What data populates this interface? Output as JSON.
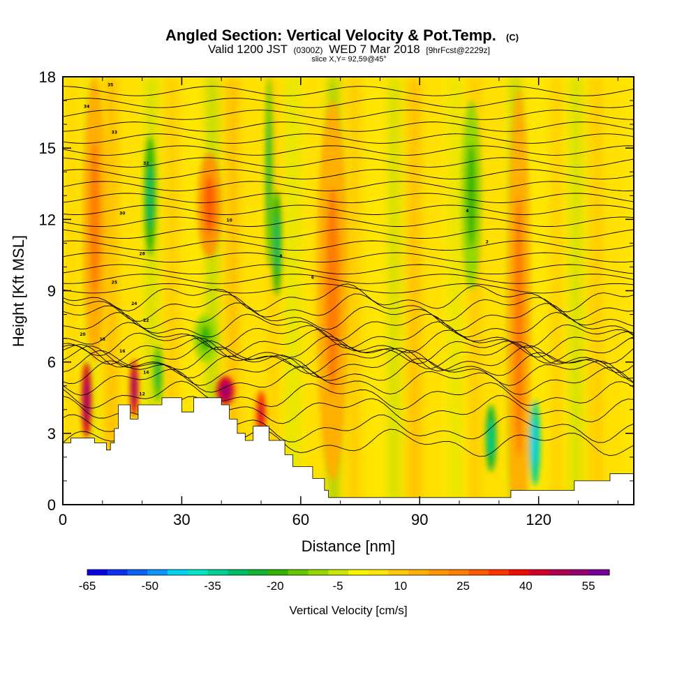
{
  "title": {
    "main": "Angled Section: Vertical Velocity & Pot.Temp.",
    "main_suffix": "(C)",
    "valid_prefix": "Valid 1200 JST",
    "valid_utc": "(0300Z)",
    "valid_date": "WED 7 Mar 2018",
    "fcst": "[9hrFcst@2229z]",
    "slice": "slice X,Y= 92,59@45°"
  },
  "chart_data": {
    "type": "heatmap",
    "xlabel": "Distance [nm]",
    "ylabel": "Height [Kft MSL]",
    "xlim": [
      0,
      144
    ],
    "ylim": [
      0,
      18
    ],
    "x_ticks": [
      "0",
      "30",
      "60",
      "90",
      "120"
    ],
    "y_ticks": [
      "0",
      "3",
      "6",
      "9",
      "12",
      "15",
      "18"
    ],
    "colorbar": {
      "label": "Vertical Velocity [cm/s]",
      "tick_labels": [
        "-65",
        "-50",
        "-35",
        "-20",
        "-5",
        "10",
        "25",
        "40",
        "55"
      ],
      "range": [
        -65,
        60
      ],
      "step": 5,
      "colors": [
        "#0a00e6",
        "#0a32f0",
        "#0a64f5",
        "#0a96fa",
        "#00d2f0",
        "#00e6c8",
        "#00d296",
        "#00be64",
        "#10b432",
        "#30b400",
        "#64c800",
        "#96d700",
        "#c8e600",
        "#f5f500",
        "#ffe600",
        "#ffc800",
        "#ffaf00",
        "#ff9600",
        "#ff7d00",
        "#ff5a00",
        "#ff3200",
        "#f00a00",
        "#d20028",
        "#b40050",
        "#96006e",
        "#780096"
      ]
    },
    "contour_labels": [
      "35",
      "34",
      "33",
      "32",
      "30",
      "28",
      "25",
      "24",
      "22",
      "20",
      "18",
      "16",
      "14",
      "12",
      "10",
      "8",
      "6",
      "4",
      "2"
    ],
    "contour_lines_kft": [
      2.6,
      3.2,
      4.0,
      4.6,
      5.2,
      5.6,
      5.9,
      6.1,
      6.3,
      6.5,
      6.8,
      7.1,
      7.5,
      7.9,
      8.3,
      8.7,
      9.1,
      9.5,
      9.9,
      10.4,
      10.9,
      11.4,
      11.9,
      12.4,
      12.9,
      13.4,
      13.9,
      14.4,
      14.9,
      15.4,
      15.9,
      16.4,
      16.9,
      17.4
    ],
    "terrain_kft": [
      [
        0,
        2.6
      ],
      [
        2,
        2.6
      ],
      [
        2,
        2.8
      ],
      [
        8,
        2.8
      ],
      [
        8,
        2.6
      ],
      [
        11,
        2.6
      ],
      [
        11,
        2.3
      ],
      [
        12,
        2.3
      ],
      [
        12,
        2.6
      ],
      [
        13,
        2.6
      ],
      [
        13,
        3.2
      ],
      [
        14,
        3.2
      ],
      [
        14,
        4.2
      ],
      [
        17,
        4.2
      ],
      [
        17,
        3.6
      ],
      [
        19,
        3.6
      ],
      [
        19,
        4.2
      ],
      [
        25,
        4.2
      ],
      [
        25,
        4.5
      ],
      [
        30,
        4.5
      ],
      [
        30,
        3.9
      ],
      [
        33,
        3.9
      ],
      [
        33,
        4.5
      ],
      [
        40,
        4.5
      ],
      [
        40,
        4.2
      ],
      [
        42,
        4.2
      ],
      [
        42,
        3.6
      ],
      [
        44,
        3.6
      ],
      [
        44,
        3.0
      ],
      [
        46,
        3.0
      ],
      [
        46,
        2.7
      ],
      [
        48,
        2.7
      ],
      [
        48,
        3.3
      ],
      [
        52,
        3.3
      ],
      [
        52,
        2.7
      ],
      [
        56,
        2.7
      ],
      [
        56,
        2.1
      ],
      [
        58,
        2.1
      ],
      [
        58,
        1.6
      ],
      [
        63,
        1.6
      ],
      [
        63,
        1.1
      ],
      [
        66,
        1.1
      ],
      [
        66,
        0.6
      ],
      [
        67,
        0.6
      ],
      [
        67,
        0.3
      ],
      [
        113,
        0.3
      ],
      [
        113,
        0.6
      ],
      [
        129,
        0.6
      ],
      [
        129,
        1.0
      ],
      [
        138,
        1.0
      ],
      [
        138,
        1.3
      ],
      [
        144,
        1.3
      ],
      [
        144,
        0
      ],
      [
        0,
        0
      ]
    ],
    "velocity_blobs": [
      {
        "x": 6,
        "y": 4.4,
        "rx": 1.2,
        "ry": 1.6,
        "v": 45
      },
      {
        "x": 18,
        "y": 4.9,
        "rx": 1.0,
        "ry": 1.2,
        "v": 45
      },
      {
        "x": 41,
        "y": 4.8,
        "rx": 2.2,
        "ry": 0.6,
        "v": 45
      },
      {
        "x": 50,
        "y": 3.8,
        "rx": 1.2,
        "ry": 1.0,
        "v": 35
      },
      {
        "x": 37,
        "y": 12.6,
        "rx": 3.0,
        "ry": 2.2,
        "v": 20
      },
      {
        "x": 8,
        "y": 12.0,
        "rx": 3.0,
        "ry": 6.0,
        "v": 15
      },
      {
        "x": 68,
        "y": 9.0,
        "rx": 4.0,
        "ry": 8.0,
        "v": 15
      },
      {
        "x": 115,
        "y": 7.5,
        "rx": 3.0,
        "ry": 10,
        "v": 15
      },
      {
        "x": 22,
        "y": 13.0,
        "rx": 1.4,
        "ry": 2.5,
        "v": -20
      },
      {
        "x": 54,
        "y": 11.0,
        "rx": 1.2,
        "ry": 2.2,
        "v": -20
      },
      {
        "x": 52,
        "y": 14.0,
        "rx": 0.9,
        "ry": 4.0,
        "v": -15
      },
      {
        "x": 103,
        "y": 13.0,
        "rx": 2.5,
        "ry": 4.0,
        "v": -10
      },
      {
        "x": 108,
        "y": 2.8,
        "rx": 1.3,
        "ry": 1.4,
        "v": -25
      },
      {
        "x": 119,
        "y": 2.6,
        "rx": 1.4,
        "ry": 1.8,
        "v": -35
      },
      {
        "x": 36,
        "y": 7.0,
        "rx": 3.0,
        "ry": 1.0,
        "v": -10
      },
      {
        "x": 24,
        "y": 5.5,
        "rx": 1.2,
        "ry": 1.2,
        "v": -15
      }
    ]
  }
}
